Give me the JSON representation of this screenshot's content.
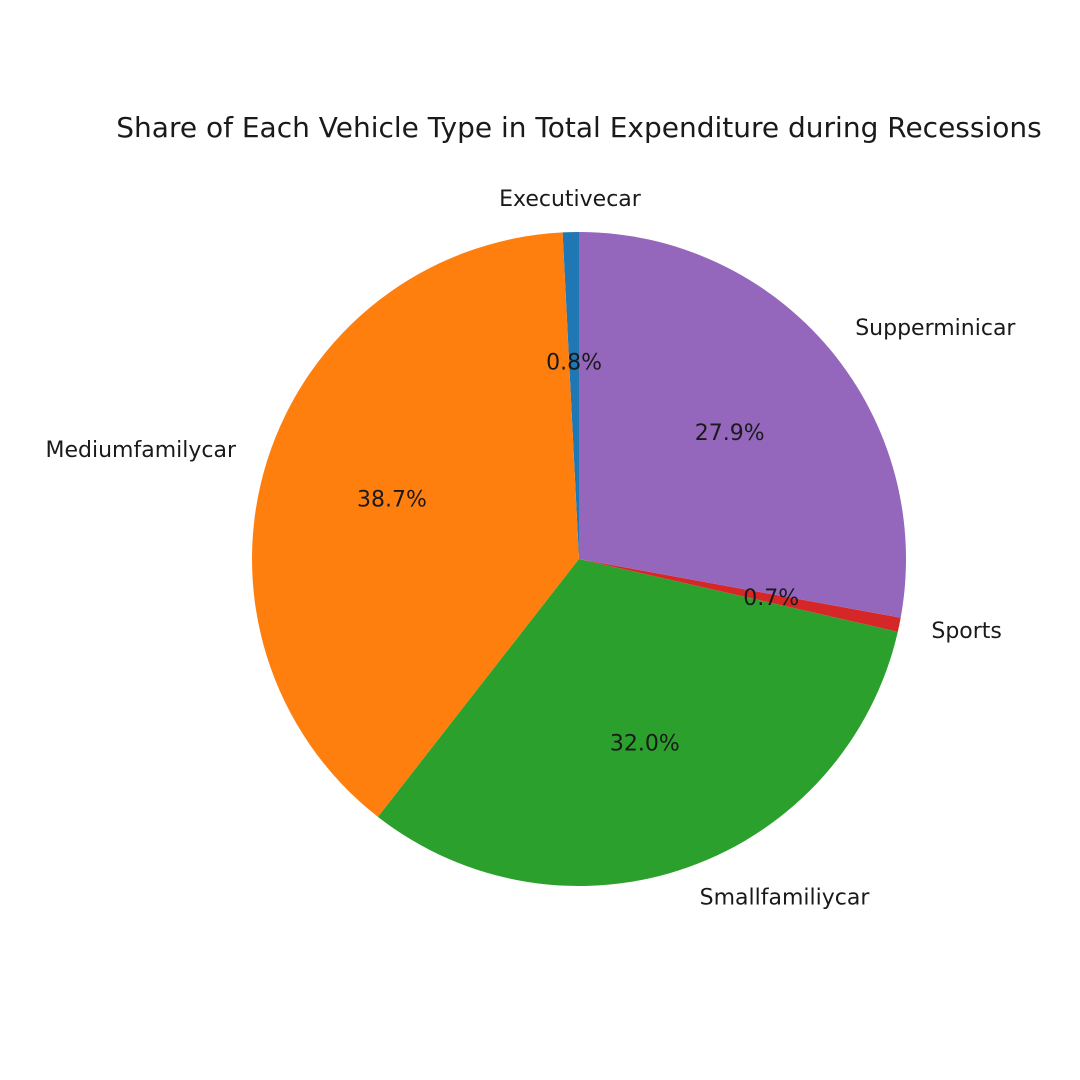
{
  "chart_data": {
    "type": "pie",
    "title": "Share of Each Vehicle Type in Total Expenditure during Recessions",
    "categories": [
      "Executivecar",
      "Mediumfamilycar",
      "Smallfamiliycar",
      "Sports",
      "Supperminicar"
    ],
    "values": [
      0.8,
      38.7,
      32.0,
      0.7,
      27.9
    ],
    "value_labels": [
      "0.8%",
      "38.7%",
      "32.0%",
      "0.7%",
      "27.9%"
    ],
    "colors": [
      "#1f77b4",
      "#ff7f0e",
      "#2ca02c",
      "#d62728",
      "#9467bd"
    ],
    "start_angle_deg": 90,
    "direction": "counterclockwise",
    "legend": "none"
  }
}
